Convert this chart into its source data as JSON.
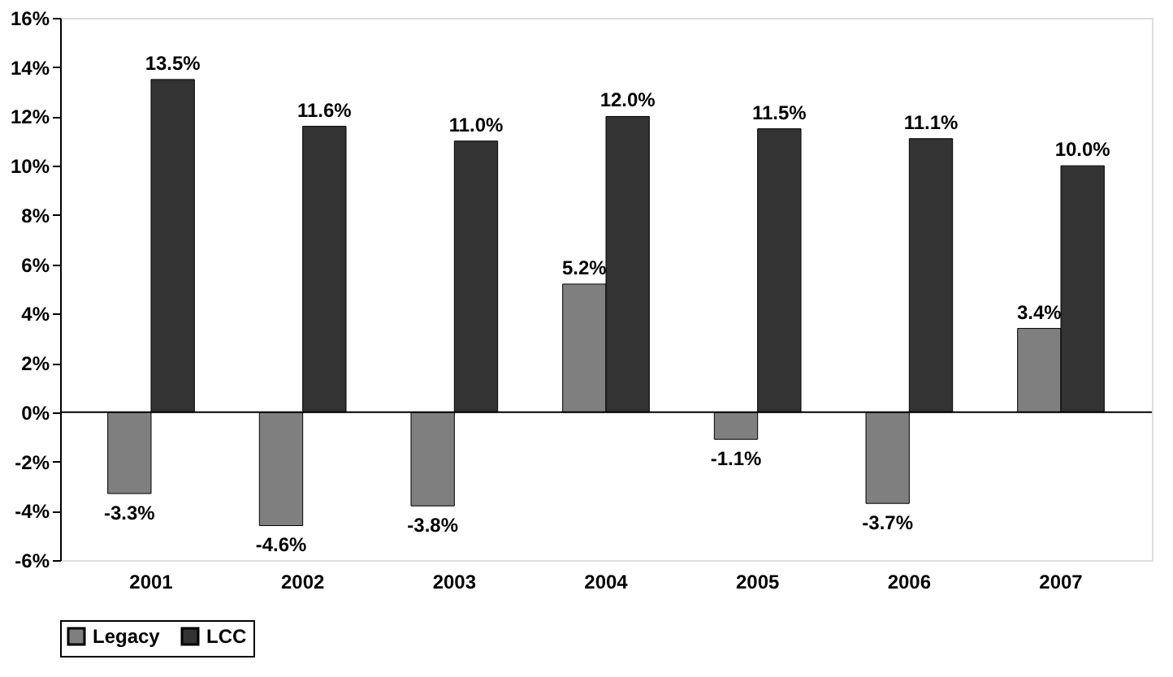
{
  "chart_data": {
    "type": "bar",
    "categories": [
      "2001",
      "2002",
      "2003",
      "2004",
      "2005",
      "2006",
      "2007"
    ],
    "series": [
      {
        "name": "Legacy",
        "color": "#7f7f7f",
        "values": [
          -3.3,
          -4.6,
          -3.8,
          5.2,
          -1.1,
          -3.7,
          3.4
        ],
        "value_labels": [
          "-3.3%",
          "-4.6%",
          "-3.8%",
          "5.2%",
          "-1.1%",
          "-3.7%",
          "3.4%"
        ]
      },
      {
        "name": "LCC",
        "color": "#333333",
        "values": [
          13.5,
          11.6,
          11.0,
          12.0,
          11.5,
          11.1,
          10.0
        ],
        "value_labels": [
          "13.5%",
          "11.6%",
          "11.0%",
          "12.0%",
          "11.5%",
          "11.1%",
          "10.0%"
        ]
      }
    ],
    "ylim": [
      -6,
      16
    ],
    "yticks": [
      {
        "value": -6,
        "label": "-6%"
      },
      {
        "value": -4,
        "label": "-4%"
      },
      {
        "value": -2,
        "label": "-2%"
      },
      {
        "value": 0,
        "label": "0%"
      },
      {
        "value": 2,
        "label": "2%"
      },
      {
        "value": 4,
        "label": "4%"
      },
      {
        "value": 6,
        "label": "6%"
      },
      {
        "value": 8,
        "label": "8%"
      },
      {
        "value": 10,
        "label": "10%"
      },
      {
        "value": 12,
        "label": "12%"
      },
      {
        "value": 14,
        "label": "14%"
      },
      {
        "value": 16,
        "label": "16%"
      }
    ],
    "ref_lines": [
      {
        "axis": "y",
        "value": 0
      }
    ],
    "grid": false,
    "legend": "bottom"
  }
}
